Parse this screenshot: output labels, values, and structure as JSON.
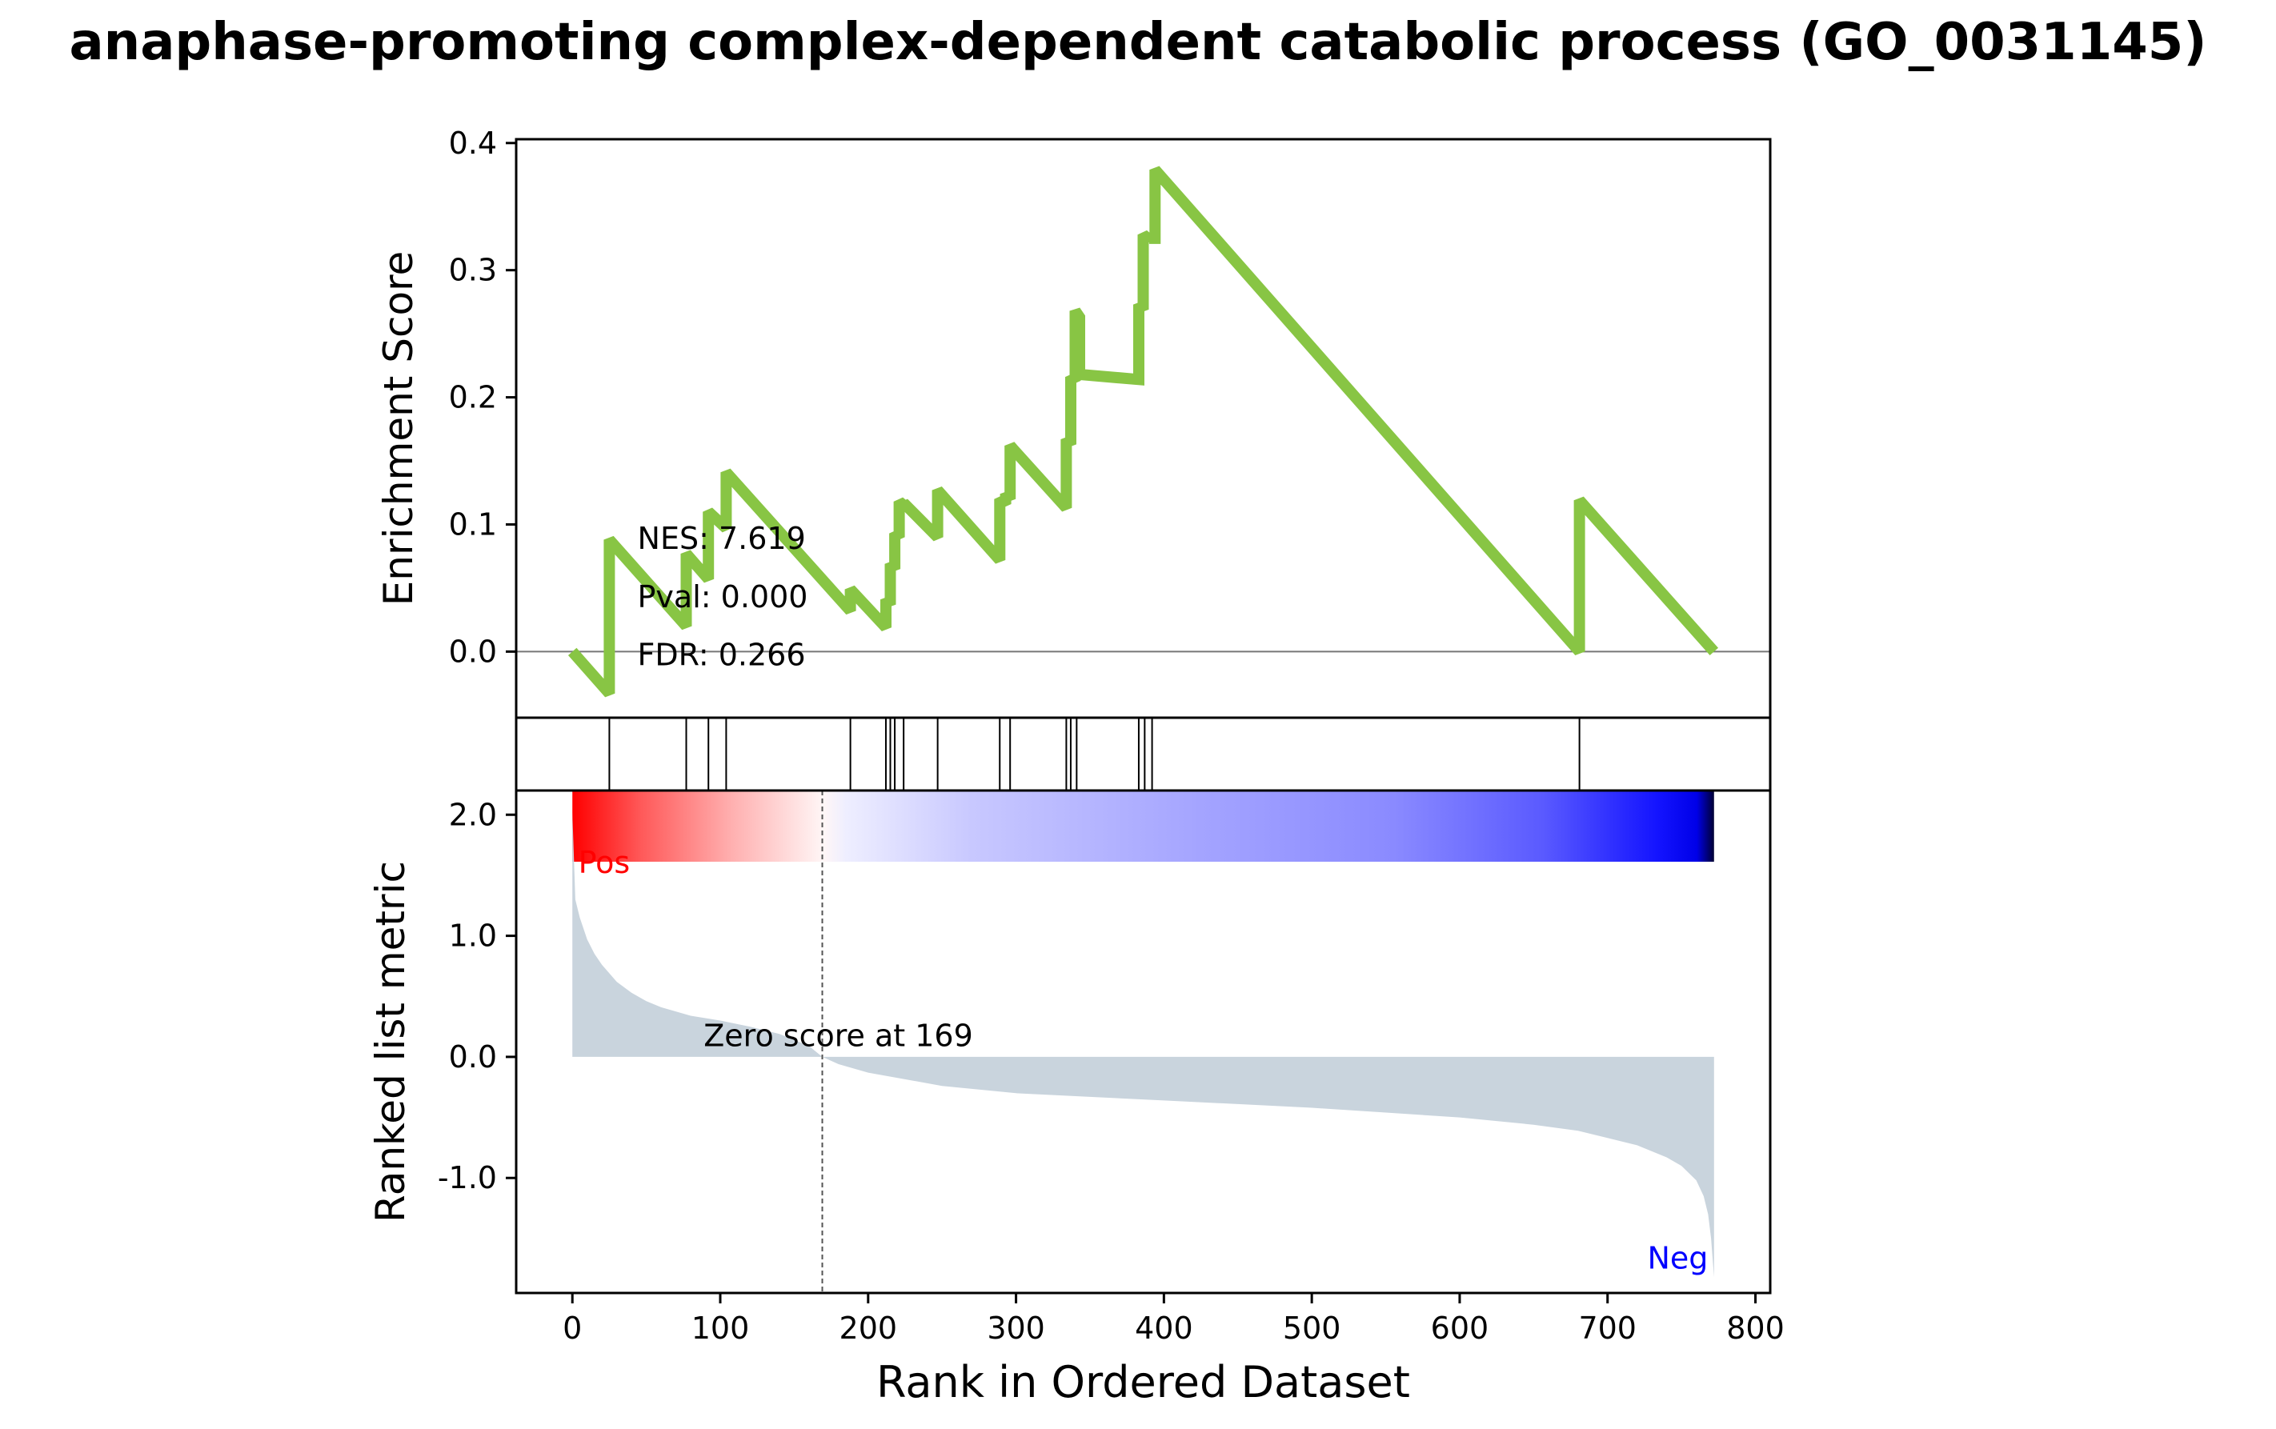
{
  "chart_data": {
    "type": "line",
    "title": "anaphase-promoting complex-dependent catabolic process (GO_0031145)",
    "xlabel": "Rank in Ordered Dataset",
    "xlim": [
      -38,
      810
    ],
    "xticks": [
      0,
      100,
      200,
      300,
      400,
      500,
      600,
      700,
      800
    ],
    "es_panel": {
      "ylabel": "Enrichment Score",
      "ylim": [
        -0.052,
        0.403
      ],
      "yticks": [
        {
          "value": 0.0,
          "label": "0.0"
        },
        {
          "value": 0.1,
          "label": "0.1"
        },
        {
          "value": 0.2,
          "label": "0.2"
        },
        {
          "value": 0.3,
          "label": "0.3"
        },
        {
          "value": 0.4,
          "label": "0.4"
        }
      ],
      "zero_line": true,
      "line_color": "#88c544",
      "stats": {
        "nes": "NES: 7.619",
        "pval": "Pval: 0.000",
        "fdr": "FDR: 0.266"
      },
      "series": [
        {
          "x": [
            0,
            25,
            25,
            77,
            77,
            92,
            92,
            104,
            104,
            188,
            188,
            212,
            212,
            215,
            215,
            218,
            218,
            221,
            221,
            224,
            224,
            247,
            247,
            289,
            289,
            293,
            293,
            296,
            296,
            334,
            334,
            337,
            337,
            340,
            340,
            343,
            343,
            383,
            383,
            386,
            386,
            390,
            390,
            394,
            394,
            681,
            681,
            772
          ],
          "y": [
            0.0,
            -0.033,
            0.088,
            0.02,
            0.077,
            0.057,
            0.11,
            0.097,
            0.141,
            0.032,
            0.049,
            0.019,
            0.041,
            0.037,
            0.069,
            0.065,
            0.093,
            0.09,
            0.118,
            0.115,
            0.117,
            0.09,
            0.127,
            0.072,
            0.12,
            0.116,
            0.124,
            0.12,
            0.162,
            0.113,
            0.167,
            0.163,
            0.216,
            0.213,
            0.268,
            0.263,
            0.218,
            0.214,
            0.273,
            0.269,
            0.328,
            0.324,
            0.325,
            0.325,
            0.379,
            0.0,
            0.119,
            0.0
          ]
        }
      ]
    },
    "hits_panel": {
      "positions": [
        25,
        77,
        92,
        104,
        188,
        212,
        215,
        218,
        224,
        247,
        289,
        296,
        334,
        337,
        341,
        383,
        387,
        392,
        681
      ]
    },
    "metric_panel": {
      "ylabel": "Ranked list metric",
      "ylim": [
        -1.95,
        2.2
      ],
      "yticks": [
        {
          "value": 2.0,
          "label": "2.0"
        },
        {
          "value": 1.0,
          "label": "1.0"
        },
        {
          "value": 0.0,
          "label": "0.0"
        },
        {
          "value": -1.0,
          "label": "-1.0"
        }
      ],
      "fill_color": "#c9d4dd",
      "zero_score_index": 169,
      "zero_score_label": "Zero score at 169",
      "pos_label": "Pos",
      "neg_label": "Neg",
      "pos_color": "#ff0000",
      "neg_color": "#0000ff",
      "curve": {
        "x": [
          0,
          2,
          5,
          10,
          15,
          20,
          30,
          40,
          50,
          60,
          80,
          100,
          120,
          140,
          160,
          169,
          180,
          200,
          250,
          300,
          350,
          400,
          450,
          500,
          550,
          600,
          650,
          680,
          700,
          720,
          740,
          750,
          760,
          765,
          768,
          770,
          772
        ],
        "y": [
          2.02,
          1.3,
          1.15,
          0.97,
          0.85,
          0.76,
          0.62,
          0.53,
          0.46,
          0.41,
          0.34,
          0.3,
          0.25,
          0.19,
          0.09,
          0.0,
          -0.06,
          -0.13,
          -0.24,
          -0.3,
          -0.33,
          -0.36,
          -0.39,
          -0.42,
          -0.46,
          -0.5,
          -0.56,
          -0.61,
          -0.67,
          -0.73,
          -0.83,
          -0.9,
          -1.02,
          -1.15,
          -1.3,
          -1.5,
          -1.82
        ]
      }
    }
  }
}
